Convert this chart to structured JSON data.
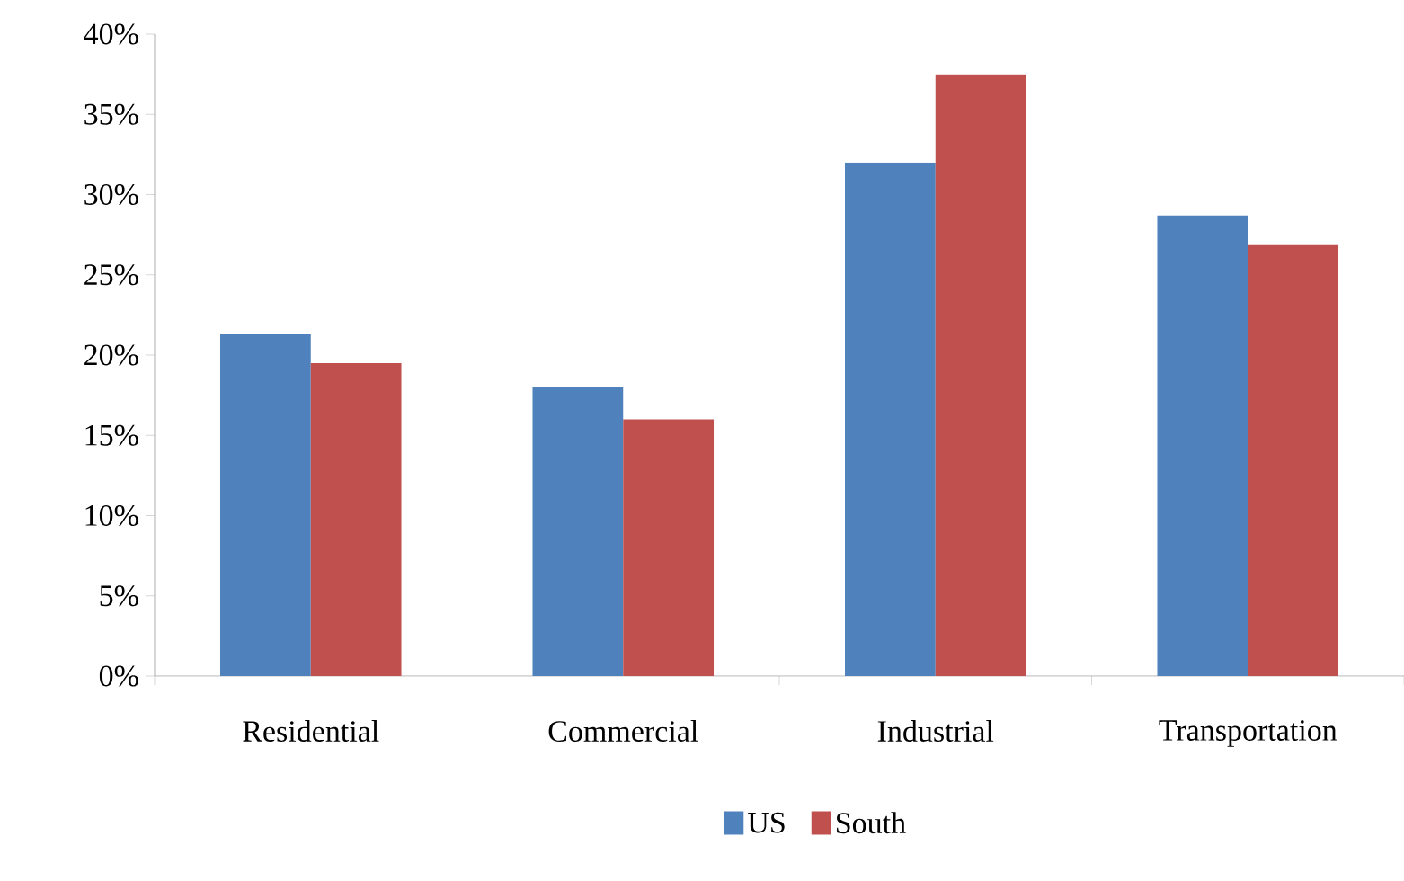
{
  "chart_data": {
    "type": "bar",
    "categories": [
      "Residential",
      "Commercial",
      "Industrial",
      "Transportation"
    ],
    "series": [
      {
        "name": "US",
        "color": "#4f81bd",
        "values": [
          21.3,
          18.0,
          32.0,
          28.7
        ]
      },
      {
        "name": "South",
        "color": "#c0504d",
        "values": [
          19.5,
          16.0,
          37.5,
          26.9
        ]
      }
    ],
    "ylim": [
      0,
      40
    ],
    "yticks": [
      {
        "value": 0,
        "label": "0%"
      },
      {
        "value": 5,
        "label": "5%"
      },
      {
        "value": 10,
        "label": "10%"
      },
      {
        "value": 15,
        "label": "15%"
      },
      {
        "value": 20,
        "label": "20%"
      },
      {
        "value": 25,
        "label": "25%"
      },
      {
        "value": 30,
        "label": "30%"
      },
      {
        "value": 35,
        "label": "35%"
      },
      {
        "value": 40,
        "label": "40%"
      }
    ],
    "grid": false,
    "legend": "bottom"
  }
}
